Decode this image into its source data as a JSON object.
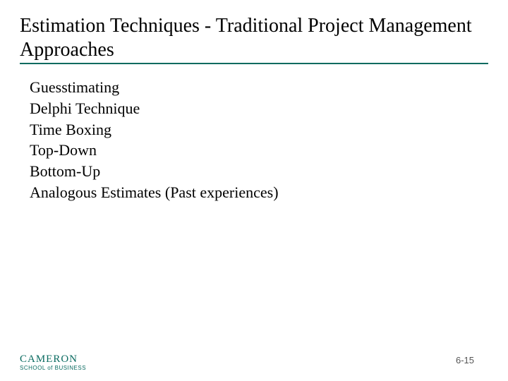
{
  "title": "Estimation Techniques - Traditional Project Management Approaches",
  "title_fontsize": 28,
  "title_underline_color": "#0a6b60",
  "body_fontsize": 22,
  "text_color": "#000000",
  "background_color": "#ffffff",
  "items": [
    "Guesstimating",
    "Delphi Technique",
    "Time Boxing",
    "Top-Down",
    "Bottom-Up",
    "Analogous Estimates (Past experiences)"
  ],
  "logo": {
    "main": "CAMERON",
    "sub": "SCHOOL of BUSINESS",
    "color": "#0a6b60"
  },
  "page_number": "6-15",
  "page_number_color": "#555555"
}
